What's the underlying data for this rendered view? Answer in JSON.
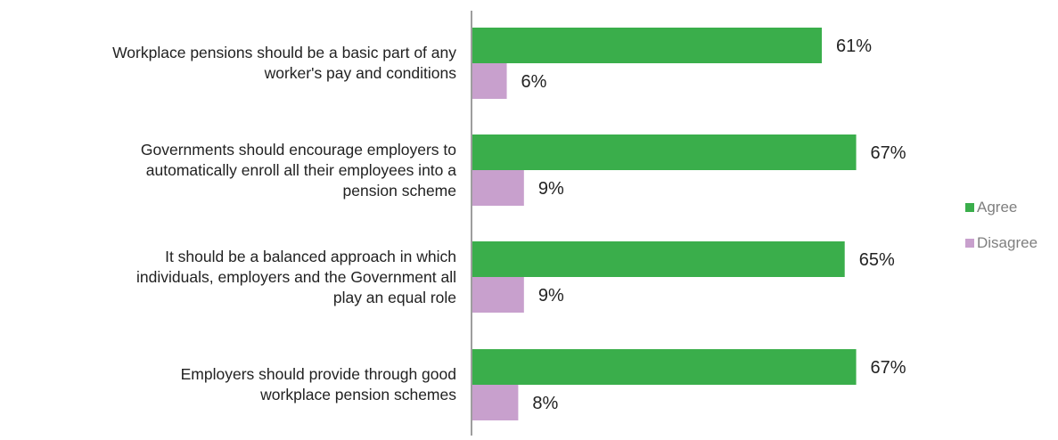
{
  "colors": {
    "agree": "#3aae4b",
    "disagree": "#c8a0cd",
    "axis": "#9e9e9e",
    "label_text": "#222222",
    "legend_text": "#7f7f7f"
  },
  "chart_data": {
    "type": "bar",
    "orientation": "horizontal",
    "title": "",
    "xlabel": "",
    "ylabel": "",
    "xlim": [
      0,
      80
    ],
    "grid": false,
    "legend_position": "right",
    "categories": [
      "Workplace pensions should be a basic part of any worker's pay and conditions",
      "Governments should encourage employers to automatically enroll all their employees into a pension scheme",
      "It should be a balanced approach in which individuals, employers and the Government all play an equal role",
      "Employers should provide through good workplace pension schemes"
    ],
    "series": [
      {
        "name": "Agree",
        "values": [
          61,
          67,
          65,
          67
        ],
        "labels": [
          "61%",
          "67%",
          "65%",
          "67%"
        ]
      },
      {
        "name": "Disagree",
        "values": [
          6,
          9,
          9,
          8
        ],
        "labels": [
          "6%",
          "9%",
          "9%",
          "8%"
        ]
      }
    ]
  }
}
